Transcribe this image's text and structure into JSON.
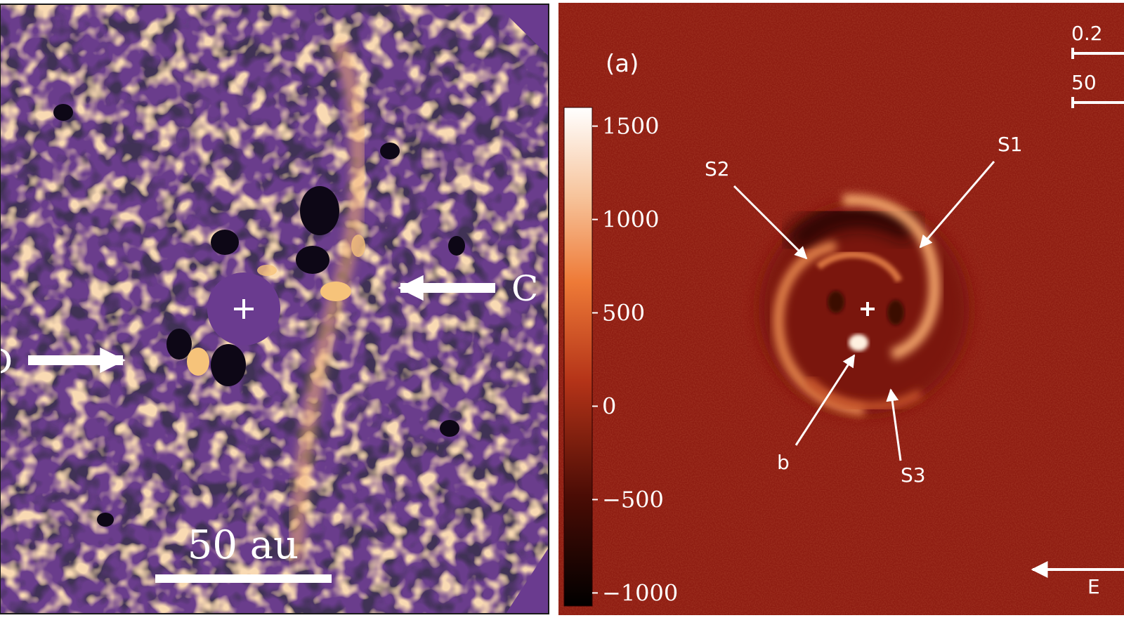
{
  "left_panel": {
    "scale_bar_label": "50 au",
    "arrow_labels": [
      "C",
      "D"
    ],
    "colors": {
      "background": "#6a3d8c",
      "mask": "#6a3b8f",
      "bright": "#f6c37a",
      "dark": "#0d0716"
    }
  },
  "right_panel": {
    "panel_label": "(a)",
    "colorbar": {
      "tick_labels": [
        "1500",
        "1000",
        "500",
        "0",
        "−500",
        "−1000"
      ],
      "tick_values": [
        1500,
        1000,
        500,
        0,
        -500,
        -1000
      ],
      "range": [
        -1070,
        1600
      ],
      "colors": {
        "low": "#000000",
        "mid": "#8b1a10",
        "high": "#ffffff"
      }
    },
    "feature_labels": {
      "s1": "S1",
      "s2": "S2",
      "s3": "S3",
      "b": "b"
    },
    "angular_scale_label": "0.2",
    "physical_scale_label": "50",
    "direction_label": "E",
    "colors": {
      "background": "#8f1d12",
      "ring": "#e8894f",
      "dark": "#3a0b06"
    }
  }
}
